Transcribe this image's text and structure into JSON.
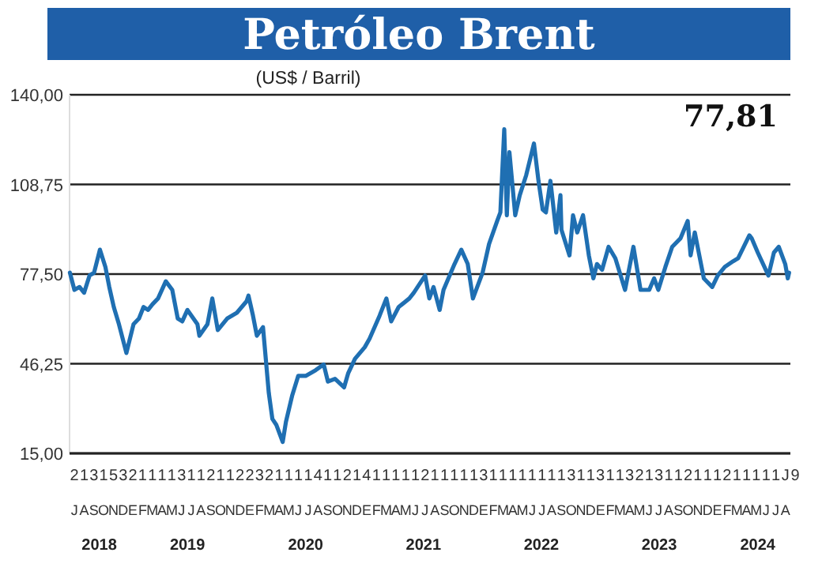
{
  "chart_data": {
    "type": "line",
    "title": "Petróleo Brent",
    "subtitle": "(US$ / Barril)",
    "annotations": [
      "77,81",
      "2131532111131121122321111411214111112111113111111113113113213112111211111J9",
      "JASONDEFMAMJJASONDEFMAMJJASONDEFMAMJJASONDEFMAMJJASONDEFMAMJJASONDEFMAMJJA"
    ],
    "x": [
      "2018-07-02",
      "2018-07-16",
      "2018-08-01",
      "2018-08-15",
      "2018-09-01",
      "2018-09-15",
      "2018-10-03",
      "2018-10-20",
      "2018-11-01",
      "2018-11-15",
      "2018-12-01",
      "2018-12-24",
      "2019-01-15",
      "2019-02-01",
      "2019-02-15",
      "2019-03-01",
      "2019-03-15",
      "2019-04-01",
      "2019-04-25",
      "2019-05-15",
      "2019-06-01",
      "2019-06-15",
      "2019-07-01",
      "2019-08-01",
      "2019-08-07",
      "2019-09-01",
      "2019-09-16",
      "2019-10-03",
      "2019-11-01",
      "2019-12-01",
      "2019-12-31",
      "2020-01-06",
      "2020-01-20",
      "2020-02-01",
      "2020-02-20",
      "2020-03-09",
      "2020-03-20",
      "2020-04-01",
      "2020-04-21",
      "2020-05-01",
      "2020-05-20",
      "2020-06-08",
      "2020-07-01",
      "2020-08-01",
      "2020-08-26",
      "2020-09-08",
      "2020-09-30",
      "2020-10-28",
      "2020-11-10",
      "2020-12-01",
      "2020-12-31",
      "2021-01-15",
      "2021-02-15",
      "2021-03-08",
      "2021-03-23",
      "2021-04-15",
      "2021-05-18",
      "2021-06-01",
      "2021-07-06",
      "2021-07-19",
      "2021-08-01",
      "2021-08-20",
      "2021-09-01",
      "2021-10-05",
      "2021-10-26",
      "2021-11-15",
      "2021-12-01",
      "2021-12-31",
      "2022-01-20",
      "2022-02-14",
      "2022-02-24",
      "2022-03-08",
      "2022-03-16",
      "2022-03-24",
      "2022-04-11",
      "2022-04-25",
      "2022-05-15",
      "2022-06-08",
      "2022-06-22",
      "2022-07-05",
      "2022-07-15",
      "2022-07-29",
      "2022-08-16",
      "2022-08-29",
      "2022-09-01",
      "2022-09-26",
      "2022-10-07",
      "2022-10-20",
      "2022-11-07",
      "2022-11-25",
      "2022-12-09",
      "2022-12-20",
      "2023-01-05",
      "2023-01-25",
      "2023-02-15",
      "2023-03-17",
      "2023-04-12",
      "2023-05-04",
      "2023-05-31",
      "2023-06-15",
      "2023-06-28",
      "2023-07-20",
      "2023-08-10",
      "2023-09-05",
      "2023-09-27",
      "2023-10-06",
      "2023-10-19",
      "2023-11-16",
      "2023-12-12",
      "2023-12-29",
      "2024-01-20",
      "2024-02-15",
      "2024-03-01",
      "2024-04-05",
      "2024-04-12",
      "2024-05-01",
      "2024-06-03",
      "2024-06-20",
      "2024-07-05",
      "2024-07-25",
      "2024-08-02",
      "2024-08-06"
    ],
    "series": [
      {
        "color": "#1f6fb2",
        "values": [
          78,
          72,
          73,
          71,
          77,
          78,
          86,
          80,
          73,
          66,
          60,
          50,
          60,
          62,
          66,
          65,
          67,
          69,
          75,
          72,
          62,
          61,
          65,
          60,
          56,
          60,
          69,
          58,
          62,
          64,
          68,
          70,
          63,
          56,
          59,
          36,
          27,
          25,
          19,
          26,
          35,
          42,
          42,
          44,
          46,
          40,
          41,
          38,
          43,
          48,
          52,
          55,
          63,
          69,
          61,
          66,
          69,
          71,
          77,
          69,
          73,
          65,
          72,
          81,
          86,
          81,
          69,
          78,
          88,
          96,
          99,
          128,
          98,
          120,
          98,
          105,
          112,
          123,
          110,
          100,
          99,
          110,
          92,
          105,
          93,
          84,
          98,
          92,
          98,
          84,
          76,
          81,
          79,
          87,
          83,
          72,
          87,
          72,
          72,
          76,
          72,
          80,
          87,
          90,
          96,
          84,
          92,
          76,
          73,
          77,
          80,
          82,
          83,
          91,
          90,
          85,
          77,
          85,
          87,
          81,
          76,
          78
        ]
      }
    ],
    "xlim": [
      "2018-07-01",
      "2024-08-10"
    ],
    "ylim": [
      15,
      140
    ],
    "yticks": [
      {
        "value": 15,
        "label": "15,00"
      },
      {
        "value": 46.25,
        "label": "46,25"
      },
      {
        "value": 77.5,
        "label": "77,50"
      },
      {
        "value": 108.75,
        "label": "108,75"
      },
      {
        "value": 140,
        "label": "140,00"
      }
    ],
    "xticks": [
      {
        "value": "2018-10-01",
        "label": "2018"
      },
      {
        "value": "2019-07-01",
        "label": "2019"
      },
      {
        "value": "2020-07-01",
        "label": "2020"
      },
      {
        "value": "2021-07-01",
        "label": "2021"
      },
      {
        "value": "2022-07-01",
        "label": "2022"
      },
      {
        "value": "2023-07-01",
        "label": "2023"
      },
      {
        "value": "2024-05-01",
        "label": "2024"
      }
    ],
    "grid": "y",
    "line_style": "solid"
  }
}
